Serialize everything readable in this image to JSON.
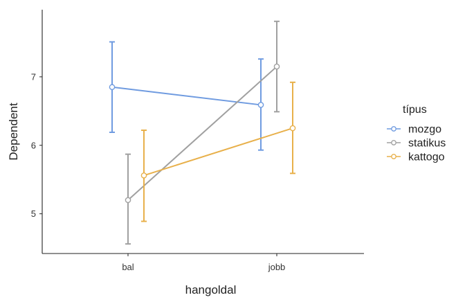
{
  "chart_data": {
    "type": "line",
    "title": "",
    "xlabel": "hangoldal",
    "ylabel": "Dependent",
    "categories": [
      "bal",
      "jobb"
    ],
    "y_ticks": [
      5,
      6,
      7
    ],
    "ylim": [
      4.42,
      7.98
    ],
    "grid": false,
    "legend": {
      "title": "típus",
      "placement": "right"
    },
    "series": [
      {
        "name": "mozgo",
        "color": "#6F9BE0",
        "values": [
          6.85,
          6.59
        ],
        "error_low": [
          6.19,
          5.93
        ],
        "error_high": [
          7.51,
          7.26
        ]
      },
      {
        "name": "statikus",
        "color": "#A0A0A0",
        "values": [
          5.2,
          7.15
        ],
        "error_low": [
          4.56,
          6.49
        ],
        "error_high": [
          5.87,
          7.81
        ]
      },
      {
        "name": "kattogo",
        "color": "#E8B04A",
        "values": [
          5.56,
          6.25
        ],
        "error_low": [
          4.89,
          5.59
        ],
        "error_high": [
          6.22,
          6.92
        ]
      }
    ]
  }
}
